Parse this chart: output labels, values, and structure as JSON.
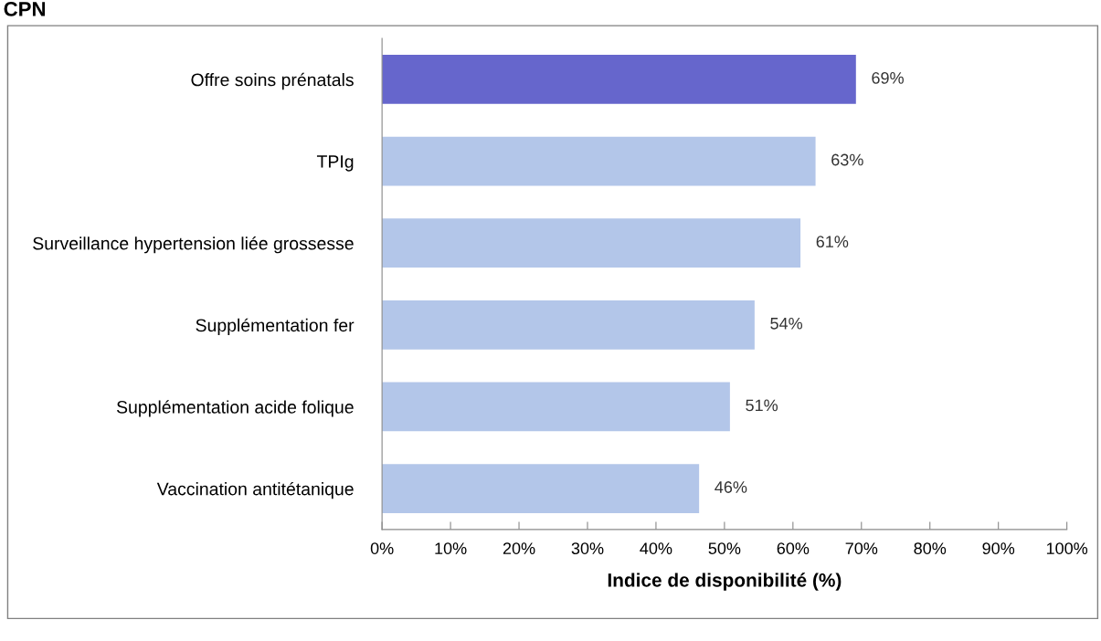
{
  "chart_data": {
    "type": "bar",
    "orientation": "horizontal",
    "title": "CPN",
    "xlabel": "Indice de disponibilité (%)",
    "categories": [
      "Offre soins prénatals",
      "TPIg",
      "Surveillance hypertension liée grossesse",
      "Supplémentation fer",
      "Supplémentation acide folique",
      "Vaccination antitétanique"
    ],
    "values": [
      69.2,
      63.3,
      61.1,
      54.4,
      50.8,
      46.3
    ],
    "value_labels": [
      "69%",
      "63%",
      "61%",
      "54%",
      "51%",
      "46%"
    ],
    "colors": [
      "#6666cc",
      "#b3c6e9",
      "#b3c6e9",
      "#b3c6e9",
      "#b3c6e9",
      "#b3c6e9"
    ],
    "xlim": [
      0,
      100
    ],
    "xticks": [
      {
        "value": 0,
        "label": "0%"
      },
      {
        "value": 10,
        "label": "10%"
      },
      {
        "value": 20,
        "label": "20%"
      },
      {
        "value": 30,
        "label": "30%"
      },
      {
        "value": 40,
        "label": "40%"
      },
      {
        "value": 50,
        "label": "50%"
      },
      {
        "value": 60,
        "label": "60%"
      },
      {
        "value": 70,
        "label": "70%"
      },
      {
        "value": 80,
        "label": "80%"
      },
      {
        "value": 90,
        "label": "90%"
      },
      {
        "value": 100,
        "label": "100%"
      }
    ],
    "grid": false
  }
}
